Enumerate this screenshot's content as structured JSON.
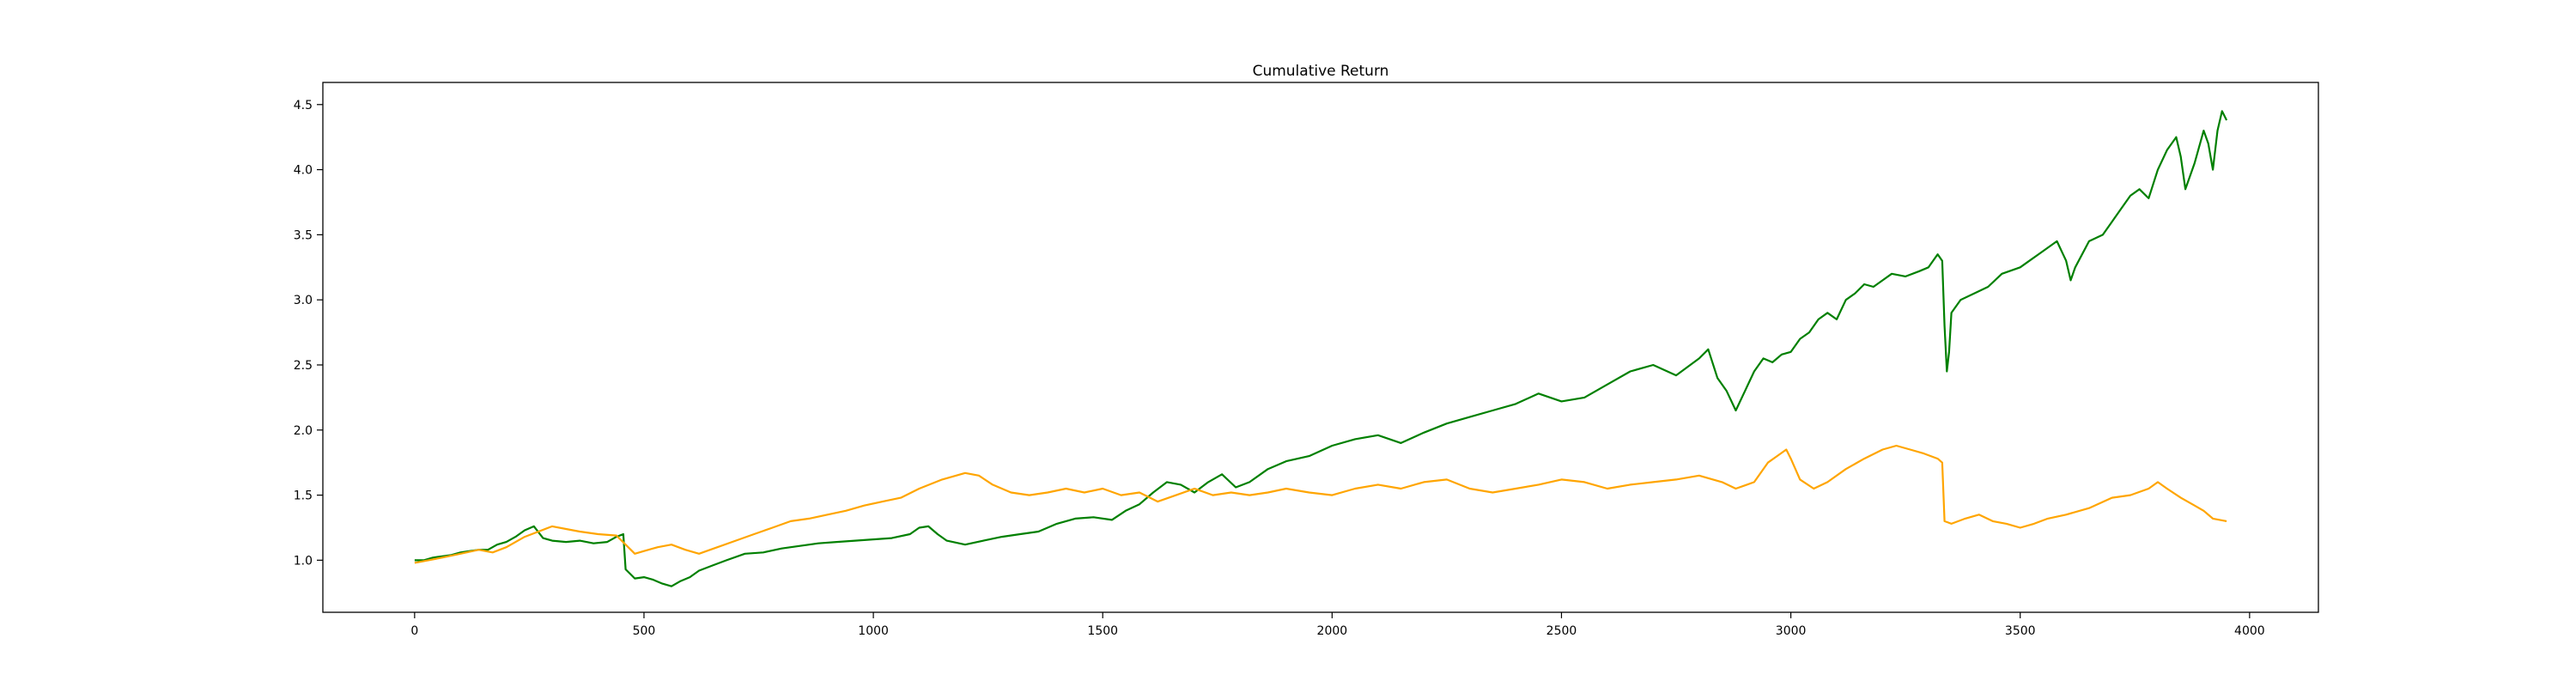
{
  "chart_data": {
    "type": "line",
    "title": "Cumulative Return",
    "xlabel": "",
    "ylabel": "",
    "xlim": [
      -200,
      4150
    ],
    "ylim": [
      0.6,
      4.67
    ],
    "x_ticks": [
      0,
      500,
      1000,
      1500,
      2000,
      2500,
      3000,
      3500,
      4000
    ],
    "x_tick_labels": [
      "0",
      "500",
      "1000",
      "1500",
      "2000",
      "2500",
      "3000",
      "3500",
      "4000"
    ],
    "y_ticks": [
      1.0,
      1.5,
      2.0,
      2.5,
      3.0,
      3.5,
      4.0,
      4.5
    ],
    "y_tick_labels": [
      "1.0",
      "1.5",
      "2.0",
      "2.5",
      "3.0",
      "3.5",
      "4.0",
      "4.5"
    ],
    "grid": false,
    "legend": "none",
    "series": [
      {
        "color": "#008000",
        "points": [
          [
            0,
            1.0
          ],
          [
            20,
            1.0
          ],
          [
            40,
            1.02
          ],
          [
            60,
            1.03
          ],
          [
            80,
            1.04
          ],
          [
            100,
            1.06
          ],
          [
            120,
            1.07
          ],
          [
            140,
            1.08
          ],
          [
            160,
            1.08
          ],
          [
            180,
            1.12
          ],
          [
            200,
            1.14
          ],
          [
            220,
            1.18
          ],
          [
            240,
            1.23
          ],
          [
            260,
            1.26
          ],
          [
            280,
            1.17
          ],
          [
            300,
            1.15
          ],
          [
            330,
            1.14
          ],
          [
            360,
            1.15
          ],
          [
            390,
            1.13
          ],
          [
            420,
            1.14
          ],
          [
            440,
            1.18
          ],
          [
            455,
            1.2
          ],
          [
            460,
            0.93
          ],
          [
            480,
            0.86
          ],
          [
            500,
            0.87
          ],
          [
            520,
            0.85
          ],
          [
            540,
            0.82
          ],
          [
            560,
            0.8
          ],
          [
            580,
            0.84
          ],
          [
            600,
            0.87
          ],
          [
            620,
            0.92
          ],
          [
            650,
            0.96
          ],
          [
            680,
            1.0
          ],
          [
            720,
            1.05
          ],
          [
            760,
            1.06
          ],
          [
            800,
            1.09
          ],
          [
            840,
            1.11
          ],
          [
            880,
            1.13
          ],
          [
            920,
            1.14
          ],
          [
            960,
            1.15
          ],
          [
            1000,
            1.16
          ],
          [
            1040,
            1.17
          ],
          [
            1080,
            1.2
          ],
          [
            1100,
            1.25
          ],
          [
            1120,
            1.26
          ],
          [
            1140,
            1.2
          ],
          [
            1160,
            1.15
          ],
          [
            1200,
            1.12
          ],
          [
            1240,
            1.15
          ],
          [
            1280,
            1.18
          ],
          [
            1320,
            1.2
          ],
          [
            1360,
            1.22
          ],
          [
            1400,
            1.28
          ],
          [
            1440,
            1.32
          ],
          [
            1480,
            1.33
          ],
          [
            1520,
            1.31
          ],
          [
            1550,
            1.38
          ],
          [
            1580,
            1.43
          ],
          [
            1610,
            1.52
          ],
          [
            1640,
            1.6
          ],
          [
            1670,
            1.58
          ],
          [
            1700,
            1.52
          ],
          [
            1730,
            1.6
          ],
          [
            1760,
            1.66
          ],
          [
            1790,
            1.56
          ],
          [
            1820,
            1.6
          ],
          [
            1860,
            1.7
          ],
          [
            1900,
            1.76
          ],
          [
            1950,
            1.8
          ],
          [
            2000,
            1.88
          ],
          [
            2050,
            1.93
          ],
          [
            2100,
            1.96
          ],
          [
            2150,
            1.9
          ],
          [
            2200,
            1.98
          ],
          [
            2250,
            2.05
          ],
          [
            2300,
            2.1
          ],
          [
            2350,
            2.15
          ],
          [
            2400,
            2.2
          ],
          [
            2450,
            2.28
          ],
          [
            2500,
            2.22
          ],
          [
            2550,
            2.25
          ],
          [
            2600,
            2.35
          ],
          [
            2650,
            2.45
          ],
          [
            2700,
            2.5
          ],
          [
            2750,
            2.42
          ],
          [
            2800,
            2.55
          ],
          [
            2820,
            2.62
          ],
          [
            2840,
            2.4
          ],
          [
            2860,
            2.3
          ],
          [
            2880,
            2.15
          ],
          [
            2900,
            2.3
          ],
          [
            2920,
            2.45
          ],
          [
            2940,
            2.55
          ],
          [
            2960,
            2.52
          ],
          [
            2980,
            2.58
          ],
          [
            3000,
            2.6
          ],
          [
            3020,
            2.7
          ],
          [
            3040,
            2.75
          ],
          [
            3060,
            2.85
          ],
          [
            3080,
            2.9
          ],
          [
            3100,
            2.85
          ],
          [
            3120,
            3.0
          ],
          [
            3140,
            3.05
          ],
          [
            3160,
            3.12
          ],
          [
            3180,
            3.1
          ],
          [
            3200,
            3.15
          ],
          [
            3220,
            3.2
          ],
          [
            3250,
            3.18
          ],
          [
            3280,
            3.22
          ],
          [
            3300,
            3.25
          ],
          [
            3320,
            3.35
          ],
          [
            3330,
            3.3
          ],
          [
            3335,
            2.8
          ],
          [
            3340,
            2.45
          ],
          [
            3345,
            2.6
          ],
          [
            3350,
            2.9
          ],
          [
            3370,
            3.0
          ],
          [
            3400,
            3.05
          ],
          [
            3430,
            3.1
          ],
          [
            3460,
            3.2
          ],
          [
            3500,
            3.25
          ],
          [
            3520,
            3.3
          ],
          [
            3540,
            3.35
          ],
          [
            3560,
            3.4
          ],
          [
            3580,
            3.45
          ],
          [
            3600,
            3.3
          ],
          [
            3610,
            3.15
          ],
          [
            3620,
            3.25
          ],
          [
            3650,
            3.45
          ],
          [
            3680,
            3.5
          ],
          [
            3700,
            3.6
          ],
          [
            3720,
            3.7
          ],
          [
            3740,
            3.8
          ],
          [
            3760,
            3.85
          ],
          [
            3780,
            3.78
          ],
          [
            3800,
            4.0
          ],
          [
            3820,
            4.15
          ],
          [
            3840,
            4.25
          ],
          [
            3850,
            4.1
          ],
          [
            3860,
            3.85
          ],
          [
            3880,
            4.05
          ],
          [
            3900,
            4.3
          ],
          [
            3910,
            4.2
          ],
          [
            3920,
            4.0
          ],
          [
            3930,
            4.3
          ],
          [
            3940,
            4.45
          ],
          [
            3950,
            4.38
          ]
        ]
      },
      {
        "color": "#ffa500",
        "points": [
          [
            0,
            0.98
          ],
          [
            30,
            1.0
          ],
          [
            60,
            1.02
          ],
          [
            100,
            1.05
          ],
          [
            140,
            1.08
          ],
          [
            170,
            1.06
          ],
          [
            200,
            1.1
          ],
          [
            240,
            1.18
          ],
          [
            270,
            1.22
          ],
          [
            300,
            1.26
          ],
          [
            330,
            1.24
          ],
          [
            360,
            1.22
          ],
          [
            400,
            1.2
          ],
          [
            440,
            1.19
          ],
          [
            460,
            1.12
          ],
          [
            480,
            1.05
          ],
          [
            500,
            1.07
          ],
          [
            530,
            1.1
          ],
          [
            560,
            1.12
          ],
          [
            590,
            1.08
          ],
          [
            620,
            1.05
          ],
          [
            660,
            1.1
          ],
          [
            700,
            1.15
          ],
          [
            740,
            1.2
          ],
          [
            780,
            1.25
          ],
          [
            820,
            1.3
          ],
          [
            860,
            1.32
          ],
          [
            900,
            1.35
          ],
          [
            940,
            1.38
          ],
          [
            980,
            1.42
          ],
          [
            1020,
            1.45
          ],
          [
            1060,
            1.48
          ],
          [
            1100,
            1.55
          ],
          [
            1150,
            1.62
          ],
          [
            1200,
            1.67
          ],
          [
            1230,
            1.65
          ],
          [
            1260,
            1.58
          ],
          [
            1300,
            1.52
          ],
          [
            1340,
            1.5
          ],
          [
            1380,
            1.52
          ],
          [
            1420,
            1.55
          ],
          [
            1460,
            1.52
          ],
          [
            1500,
            1.55
          ],
          [
            1540,
            1.5
          ],
          [
            1580,
            1.52
          ],
          [
            1620,
            1.45
          ],
          [
            1660,
            1.5
          ],
          [
            1700,
            1.55
          ],
          [
            1740,
            1.5
          ],
          [
            1780,
            1.52
          ],
          [
            1820,
            1.5
          ],
          [
            1860,
            1.52
          ],
          [
            1900,
            1.55
          ],
          [
            1950,
            1.52
          ],
          [
            2000,
            1.5
          ],
          [
            2050,
            1.55
          ],
          [
            2100,
            1.58
          ],
          [
            2150,
            1.55
          ],
          [
            2200,
            1.6
          ],
          [
            2250,
            1.62
          ],
          [
            2300,
            1.55
          ],
          [
            2350,
            1.52
          ],
          [
            2400,
            1.55
          ],
          [
            2450,
            1.58
          ],
          [
            2500,
            1.62
          ],
          [
            2550,
            1.6
          ],
          [
            2600,
            1.55
          ],
          [
            2650,
            1.58
          ],
          [
            2700,
            1.6
          ],
          [
            2750,
            1.62
          ],
          [
            2800,
            1.65
          ],
          [
            2850,
            1.6
          ],
          [
            2880,
            1.55
          ],
          [
            2920,
            1.6
          ],
          [
            2950,
            1.75
          ],
          [
            2970,
            1.8
          ],
          [
            2990,
            1.85
          ],
          [
            3000,
            1.78
          ],
          [
            3020,
            1.62
          ],
          [
            3050,
            1.55
          ],
          [
            3080,
            1.6
          ],
          [
            3120,
            1.7
          ],
          [
            3160,
            1.78
          ],
          [
            3200,
            1.85
          ],
          [
            3230,
            1.88
          ],
          [
            3260,
            1.85
          ],
          [
            3290,
            1.82
          ],
          [
            3320,
            1.78
          ],
          [
            3330,
            1.75
          ],
          [
            3335,
            1.3
          ],
          [
            3350,
            1.28
          ],
          [
            3380,
            1.32
          ],
          [
            3410,
            1.35
          ],
          [
            3440,
            1.3
          ],
          [
            3470,
            1.28
          ],
          [
            3500,
            1.25
          ],
          [
            3530,
            1.28
          ],
          [
            3560,
            1.32
          ],
          [
            3600,
            1.35
          ],
          [
            3650,
            1.4
          ],
          [
            3700,
            1.48
          ],
          [
            3740,
            1.5
          ],
          [
            3780,
            1.55
          ],
          [
            3800,
            1.6
          ],
          [
            3820,
            1.55
          ],
          [
            3850,
            1.48
          ],
          [
            3880,
            1.42
          ],
          [
            3900,
            1.38
          ],
          [
            3920,
            1.32
          ],
          [
            3950,
            1.3
          ]
        ]
      }
    ]
  }
}
